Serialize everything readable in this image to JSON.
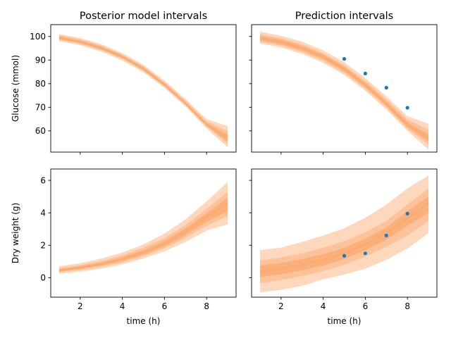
{
  "chart_data": [
    {
      "type": "area",
      "title": "Posterior model intervals",
      "xlabel": "",
      "ylabel": "Glucose (mmol)",
      "xlim": [
        0.6,
        9.4
      ],
      "ylim": [
        51,
        105
      ],
      "xticks": [
        2,
        4,
        6,
        8
      ],
      "yticks": [
        60,
        70,
        80,
        90,
        100
      ],
      "ytick_labels": [
        "60",
        "70",
        "80",
        "90",
        "100"
      ],
      "x": [
        1,
        2,
        3,
        4,
        5,
        6,
        7,
        8,
        9
      ],
      "median": [
        99.3,
        97.6,
        95.0,
        91.3,
        86.2,
        79.4,
        71.5,
        62.5,
        57.0
      ],
      "bands": [
        {
          "lower": [
            98.0,
            96.3,
            93.6,
            89.8,
            84.8,
            78.2,
            70.3,
            61.0,
            53.0
          ],
          "upper": [
            101.0,
            99.3,
            96.7,
            93.0,
            88.0,
            81.3,
            73.4,
            65.0,
            62.0
          ]
        },
        {
          "lower": [
            98.5,
            96.8,
            94.2,
            90.5,
            85.4,
            78.8,
            70.9,
            61.8,
            54.5
          ],
          "upper": [
            100.5,
            98.8,
            96.2,
            92.4,
            87.4,
            80.6,
            72.8,
            64.0,
            60.0
          ]
        },
        {
          "lower": [
            98.9,
            97.2,
            94.6,
            90.9,
            85.8,
            79.1,
            71.2,
            62.2,
            55.5
          ],
          "upper": [
            100.0,
            98.3,
            95.7,
            92.0,
            86.9,
            80.1,
            72.2,
            63.3,
            58.5
          ]
        }
      ],
      "band_colors": [
        "#fdd8bd",
        "#fcc39a",
        "#fbb07a"
      ],
      "points": null
    },
    {
      "type": "area",
      "title": "Prediction intervals",
      "xlabel": "",
      "ylabel": "",
      "xlim": [
        0.6,
        9.4
      ],
      "ylim": [
        51,
        105
      ],
      "xticks": [
        2,
        4,
        6,
        8
      ],
      "yticks": [
        60,
        70,
        80,
        90,
        100
      ],
      "ytick_labels": [
        "",
        "",
        "",
        "",
        ""
      ],
      "x": [
        1,
        2,
        3,
        4,
        5,
        6,
        7,
        8,
        9
      ],
      "median": [
        99.3,
        97.6,
        95.0,
        91.3,
        86.2,
        79.4,
        71.5,
        62.5,
        57.0
      ],
      "bands": [
        {
          "lower": [
            97.0,
            95.3,
            92.6,
            88.8,
            83.7,
            77.0,
            69.0,
            60.0,
            52.0
          ],
          "upper": [
            102.0,
            100.3,
            97.8,
            94.1,
            89.1,
            82.4,
            74.6,
            66.2,
            63.0
          ]
        },
        {
          "lower": [
            97.8,
            96.1,
            93.4,
            89.6,
            84.5,
            77.9,
            69.9,
            60.9,
            54.0
          ],
          "upper": [
            101.0,
            99.3,
            96.7,
            93.0,
            87.9,
            81.2,
            73.4,
            64.8,
            60.5
          ]
        },
        {
          "lower": [
            98.4,
            96.7,
            94.1,
            90.4,
            85.3,
            78.6,
            70.6,
            61.6,
            55.5
          ],
          "upper": [
            100.3,
            98.6,
            96.0,
            92.3,
            87.2,
            80.4,
            72.5,
            63.7,
            58.5
          ]
        }
      ],
      "band_colors": [
        "#fdd8bd",
        "#fcc39a",
        "#fbb07a"
      ],
      "points": {
        "x": [
          5,
          6,
          7,
          8
        ],
        "y": [
          90.5,
          84.3,
          78.3,
          69.8
        ],
        "color": "#1f77b4"
      }
    },
    {
      "type": "area",
      "title": "",
      "xlabel": "time (h)",
      "ylabel": "Dry weight (g)",
      "xlim": [
        0.6,
        9.4
      ],
      "ylim": [
        -1.2,
        6.7
      ],
      "xticks": [
        2,
        4,
        6,
        8
      ],
      "xtick_labels": [
        "2",
        "4",
        "6",
        "8"
      ],
      "yticks": [
        0,
        2,
        4,
        6
      ],
      "ytick_labels": [
        "0",
        "2",
        "4",
        "6"
      ],
      "x": [
        1,
        2,
        3,
        4,
        5,
        6,
        7,
        8,
        9
      ],
      "median": [
        0.45,
        0.62,
        0.85,
        1.15,
        1.55,
        2.1,
        2.85,
        3.75,
        4.6
      ],
      "bands": [
        {
          "lower": [
            0.25,
            0.38,
            0.55,
            0.82,
            1.18,
            1.62,
            2.2,
            2.9,
            3.3
          ],
          "upper": [
            0.7,
            0.9,
            1.18,
            1.55,
            2.05,
            2.72,
            3.6,
            4.7,
            5.9
          ]
        },
        {
          "lower": [
            0.33,
            0.48,
            0.68,
            0.95,
            1.33,
            1.82,
            2.45,
            3.2,
            3.8
          ],
          "upper": [
            0.6,
            0.78,
            1.03,
            1.38,
            1.85,
            2.45,
            3.25,
            4.25,
            5.3
          ]
        },
        {
          "lower": [
            0.38,
            0.54,
            0.75,
            1.03,
            1.42,
            1.94,
            2.62,
            3.45,
            4.1
          ],
          "upper": [
            0.53,
            0.7,
            0.94,
            1.26,
            1.7,
            2.27,
            3.05,
            3.98,
            4.95
          ]
        }
      ],
      "band_colors": [
        "#fdd8bd",
        "#fcc39a",
        "#fbb07a"
      ],
      "points": null
    },
    {
      "type": "area",
      "title": "",
      "xlabel": "time (h)",
      "ylabel": "",
      "xlim": [
        0.6,
        9.4
      ],
      "ylim": [
        -1.2,
        6.7
      ],
      "xticks": [
        2,
        4,
        6,
        8
      ],
      "xtick_labels": [
        "2",
        "4",
        "6",
        "8"
      ],
      "yticks": [
        0,
        2,
        4,
        6
      ],
      "ytick_labels": [
        "",
        "",
        "",
        ""
      ],
      "x": [
        1,
        2,
        3,
        4,
        5,
        6,
        7,
        8,
        9
      ],
      "median": [
        0.4,
        0.55,
        0.8,
        1.1,
        1.5,
        2.05,
        2.75,
        3.65,
        4.6
      ],
      "bands": [
        {
          "lower": [
            -0.9,
            -0.75,
            -0.5,
            -0.1,
            0.2,
            0.55,
            1.1,
            1.8,
            2.75
          ],
          "upper": [
            1.7,
            1.85,
            2.2,
            2.6,
            3.05,
            3.7,
            4.5,
            5.5,
            6.3
          ]
        },
        {
          "lower": [
            -0.35,
            -0.15,
            0.1,
            0.4,
            0.8,
            1.3,
            1.9,
            2.6,
            3.5
          ],
          "upper": [
            1.05,
            1.25,
            1.5,
            1.85,
            2.25,
            2.8,
            3.5,
            4.5,
            5.5
          ]
        },
        {
          "lower": [
            0.05,
            0.2,
            0.45,
            0.75,
            1.15,
            1.7,
            2.35,
            3.2,
            4.0
          ],
          "upper": [
            0.75,
            0.9,
            1.15,
            1.45,
            1.85,
            2.4,
            3.1,
            4.1,
            5.0
          ]
        }
      ],
      "band_colors": [
        "#fdd8bd",
        "#fcc39a",
        "#fbb07a"
      ],
      "points": {
        "x": [
          5,
          6,
          7,
          8
        ],
        "y": [
          1.35,
          1.5,
          2.6,
          3.95
        ],
        "color": "#1f77b4"
      }
    }
  ]
}
